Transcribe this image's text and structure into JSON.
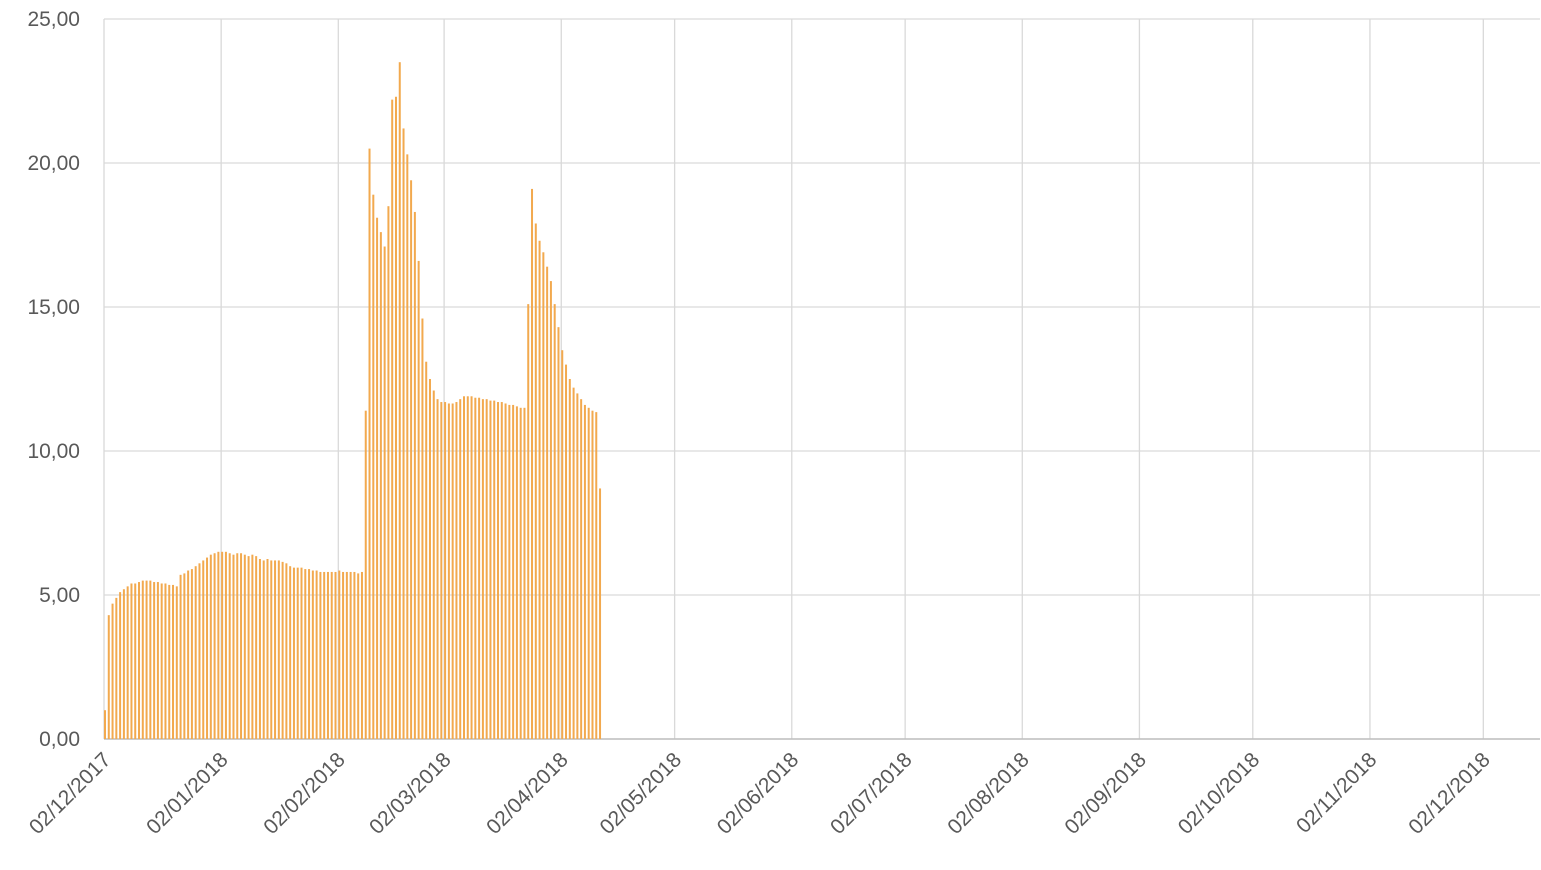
{
  "chart_data": {
    "type": "bar",
    "color": "#f2a94e",
    "grid": true,
    "xlim": [
      "2017-12-02",
      "2018-12-17"
    ],
    "ylim": [
      0,
      25
    ],
    "yticks": [
      {
        "value": 0,
        "label": "0,00"
      },
      {
        "value": 5,
        "label": "5,00"
      },
      {
        "value": 10,
        "label": "10,00"
      },
      {
        "value": 15,
        "label": "15,00"
      },
      {
        "value": 20,
        "label": "20,00"
      },
      {
        "value": 25,
        "label": "25,00"
      }
    ],
    "xticks": [
      {
        "value": "2017-12-02",
        "label": "02/12/2017"
      },
      {
        "value": "2018-01-02",
        "label": "02/01/2018"
      },
      {
        "value": "2018-02-02",
        "label": "02/02/2018"
      },
      {
        "value": "2018-03-02",
        "label": "02/03/2018"
      },
      {
        "value": "2018-04-02",
        "label": "02/04/2018"
      },
      {
        "value": "2018-05-02",
        "label": "02/05/2018"
      },
      {
        "value": "2018-06-02",
        "label": "02/06/2018"
      },
      {
        "value": "2018-07-02",
        "label": "02/07/2018"
      },
      {
        "value": "2018-08-02",
        "label": "02/08/2018"
      },
      {
        "value": "2018-09-02",
        "label": "02/09/2018"
      },
      {
        "value": "2018-10-02",
        "label": "02/10/2018"
      },
      {
        "value": "2018-11-02",
        "label": "02/11/2018"
      },
      {
        "value": "2018-12-02",
        "label": "02/12/2018"
      }
    ],
    "x": [
      "2017-12-02",
      "2017-12-03",
      "2017-12-04",
      "2017-12-05",
      "2017-12-06",
      "2017-12-07",
      "2017-12-08",
      "2017-12-09",
      "2017-12-10",
      "2017-12-11",
      "2017-12-12",
      "2017-12-13",
      "2017-12-14",
      "2017-12-15",
      "2017-12-16",
      "2017-12-17",
      "2017-12-18",
      "2017-12-19",
      "2017-12-20",
      "2017-12-21",
      "2017-12-22",
      "2017-12-23",
      "2017-12-24",
      "2017-12-25",
      "2017-12-26",
      "2017-12-27",
      "2017-12-28",
      "2017-12-29",
      "2017-12-30",
      "2017-12-31",
      "2018-01-01",
      "2018-01-02",
      "2018-01-03",
      "2018-01-04",
      "2018-01-05",
      "2018-01-06",
      "2018-01-07",
      "2018-01-08",
      "2018-01-09",
      "2018-01-10",
      "2018-01-11",
      "2018-01-12",
      "2018-01-13",
      "2018-01-14",
      "2018-01-15",
      "2018-01-16",
      "2018-01-17",
      "2018-01-18",
      "2018-01-19",
      "2018-01-20",
      "2018-01-21",
      "2018-01-22",
      "2018-01-23",
      "2018-01-24",
      "2018-01-25",
      "2018-01-26",
      "2018-01-27",
      "2018-01-28",
      "2018-01-29",
      "2018-01-30",
      "2018-01-31",
      "2018-02-01",
      "2018-02-02",
      "2018-02-03",
      "2018-02-04",
      "2018-02-05",
      "2018-02-06",
      "2018-02-07",
      "2018-02-08",
      "2018-02-09",
      "2018-02-10",
      "2018-02-11",
      "2018-02-12",
      "2018-02-13",
      "2018-02-14",
      "2018-02-15",
      "2018-02-16",
      "2018-02-17",
      "2018-02-18",
      "2018-02-19",
      "2018-02-20",
      "2018-02-21",
      "2018-02-22",
      "2018-02-23",
      "2018-02-24",
      "2018-02-25",
      "2018-02-26",
      "2018-02-27",
      "2018-02-28",
      "2018-03-01",
      "2018-03-02",
      "2018-03-03",
      "2018-03-04",
      "2018-03-05",
      "2018-03-06",
      "2018-03-07",
      "2018-03-08",
      "2018-03-09",
      "2018-03-10",
      "2018-03-11",
      "2018-03-12",
      "2018-03-13",
      "2018-03-14",
      "2018-03-15",
      "2018-03-16",
      "2018-03-17",
      "2018-03-18",
      "2018-03-19",
      "2018-03-20",
      "2018-03-21",
      "2018-03-22",
      "2018-03-23",
      "2018-03-24",
      "2018-03-25",
      "2018-03-26",
      "2018-03-27",
      "2018-03-28",
      "2018-03-29",
      "2018-03-30",
      "2018-03-31",
      "2018-04-01",
      "2018-04-02",
      "2018-04-03",
      "2018-04-04",
      "2018-04-05",
      "2018-04-06",
      "2018-04-07",
      "2018-04-08",
      "2018-04-09",
      "2018-04-10",
      "2018-04-11",
      "2018-04-12"
    ],
    "values": [
      1.0,
      4.3,
      4.7,
      4.9,
      5.1,
      5.2,
      5.3,
      5.4,
      5.4,
      5.45,
      5.5,
      5.5,
      5.5,
      5.45,
      5.45,
      5.4,
      5.4,
      5.35,
      5.35,
      5.3,
      5.7,
      5.75,
      5.85,
      5.9,
      6.0,
      6.1,
      6.2,
      6.3,
      6.4,
      6.45,
      6.5,
      6.5,
      6.5,
      6.45,
      6.4,
      6.45,
      6.45,
      6.4,
      6.35,
      6.4,
      6.35,
      6.25,
      6.2,
      6.25,
      6.2,
      6.2,
      6.2,
      6.15,
      6.1,
      6.0,
      5.95,
      5.95,
      5.95,
      5.9,
      5.9,
      5.85,
      5.85,
      5.8,
      5.8,
      5.8,
      5.8,
      5.8,
      5.85,
      5.8,
      5.8,
      5.8,
      5.8,
      5.75,
      5.8,
      11.4,
      20.5,
      18.9,
      18.1,
      17.6,
      17.1,
      18.5,
      22.2,
      22.3,
      23.5,
      21.2,
      20.3,
      19.4,
      18.3,
      16.6,
      14.6,
      13.1,
      12.5,
      12.1,
      11.8,
      11.7,
      11.7,
      11.65,
      11.65,
      11.7,
      11.8,
      11.9,
      11.9,
      11.9,
      11.85,
      11.85,
      11.8,
      11.8,
      11.75,
      11.75,
      11.7,
      11.7,
      11.65,
      11.6,
      11.6,
      11.55,
      11.5,
      11.5,
      15.1,
      19.1,
      17.9,
      17.3,
      16.9,
      16.4,
      15.9,
      15.1,
      14.3,
      13.5,
      13.0,
      12.5,
      12.2,
      12.0,
      11.8,
      11.6,
      11.5,
      11.4,
      11.35,
      8.7
    ]
  }
}
